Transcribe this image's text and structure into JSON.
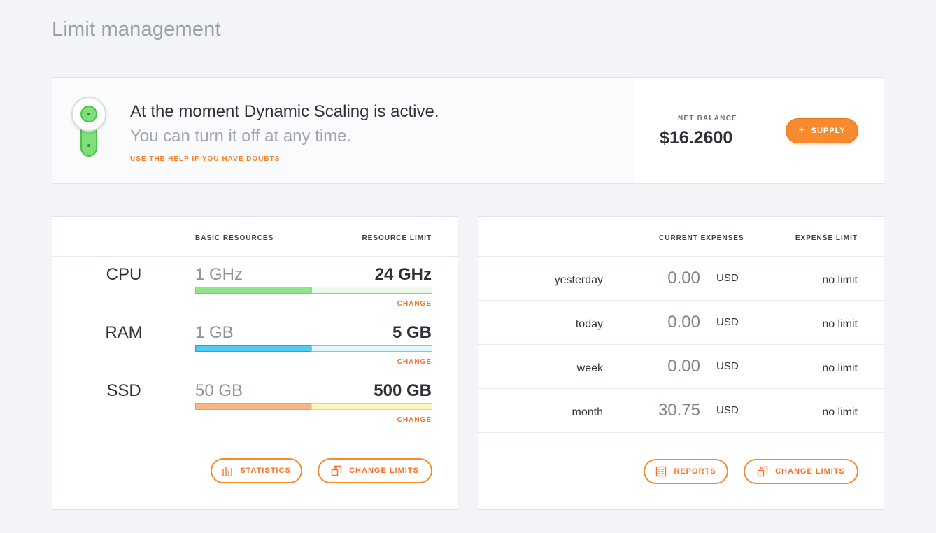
{
  "page": {
    "title": "Limit management"
  },
  "banner": {
    "line1": "At the moment Dynamic Scaling is active.",
    "line2": "You can turn it off at any time.",
    "help": "USE THE HELP IF YOU HAVE DOUBTS",
    "toggle_on": true,
    "balance_label": "NET BALANCE",
    "balance_value": "$16.2600",
    "supply_label": "SUPPLY",
    "supply_icon": "plus-icon"
  },
  "resources": {
    "headers": {
      "basic": "BASIC RESOURCES",
      "limit": "RESOURCE LIMIT"
    },
    "rows": [
      {
        "name": "CPU",
        "basic": "1 GHz",
        "limit": "24 GHz",
        "change": "CHANGE",
        "color": "#7ee07a",
        "color_light": "#e7f9e6"
      },
      {
        "name": "RAM",
        "basic": "1 GB",
        "limit": "5 GB",
        "change": "CHANGE",
        "color": "#3dc7f4",
        "color_light": "#ddf5fd"
      },
      {
        "name": "SSD",
        "basic": "50 GB",
        "limit": "500 GB",
        "change": "CHANGE",
        "color": "#f8b07c",
        "color_light": "#fff4b8"
      }
    ],
    "buttons": {
      "statistics": "STATISTICS",
      "change_limits": "CHANGE LIMITS"
    }
  },
  "expenses": {
    "headers": {
      "current": "CURRENT EXPENSES",
      "limit": "EXPENSE LIMIT"
    },
    "rows": [
      {
        "period": "yesterday",
        "amount": "0.00",
        "currency": "USD",
        "limit": "no limit"
      },
      {
        "period": "today",
        "amount": "0.00",
        "currency": "USD",
        "limit": "no limit"
      },
      {
        "period": "week",
        "amount": "0.00",
        "currency": "USD",
        "limit": "no limit"
      },
      {
        "period": "month",
        "amount": "30.75",
        "currency": "USD",
        "limit": "no limit"
      }
    ],
    "buttons": {
      "reports": "REPORTS",
      "change_limits": "CHANGE LIMITS"
    }
  },
  "colors": {
    "accent": "#f58a2e",
    "toggle": "#7ee07a"
  }
}
